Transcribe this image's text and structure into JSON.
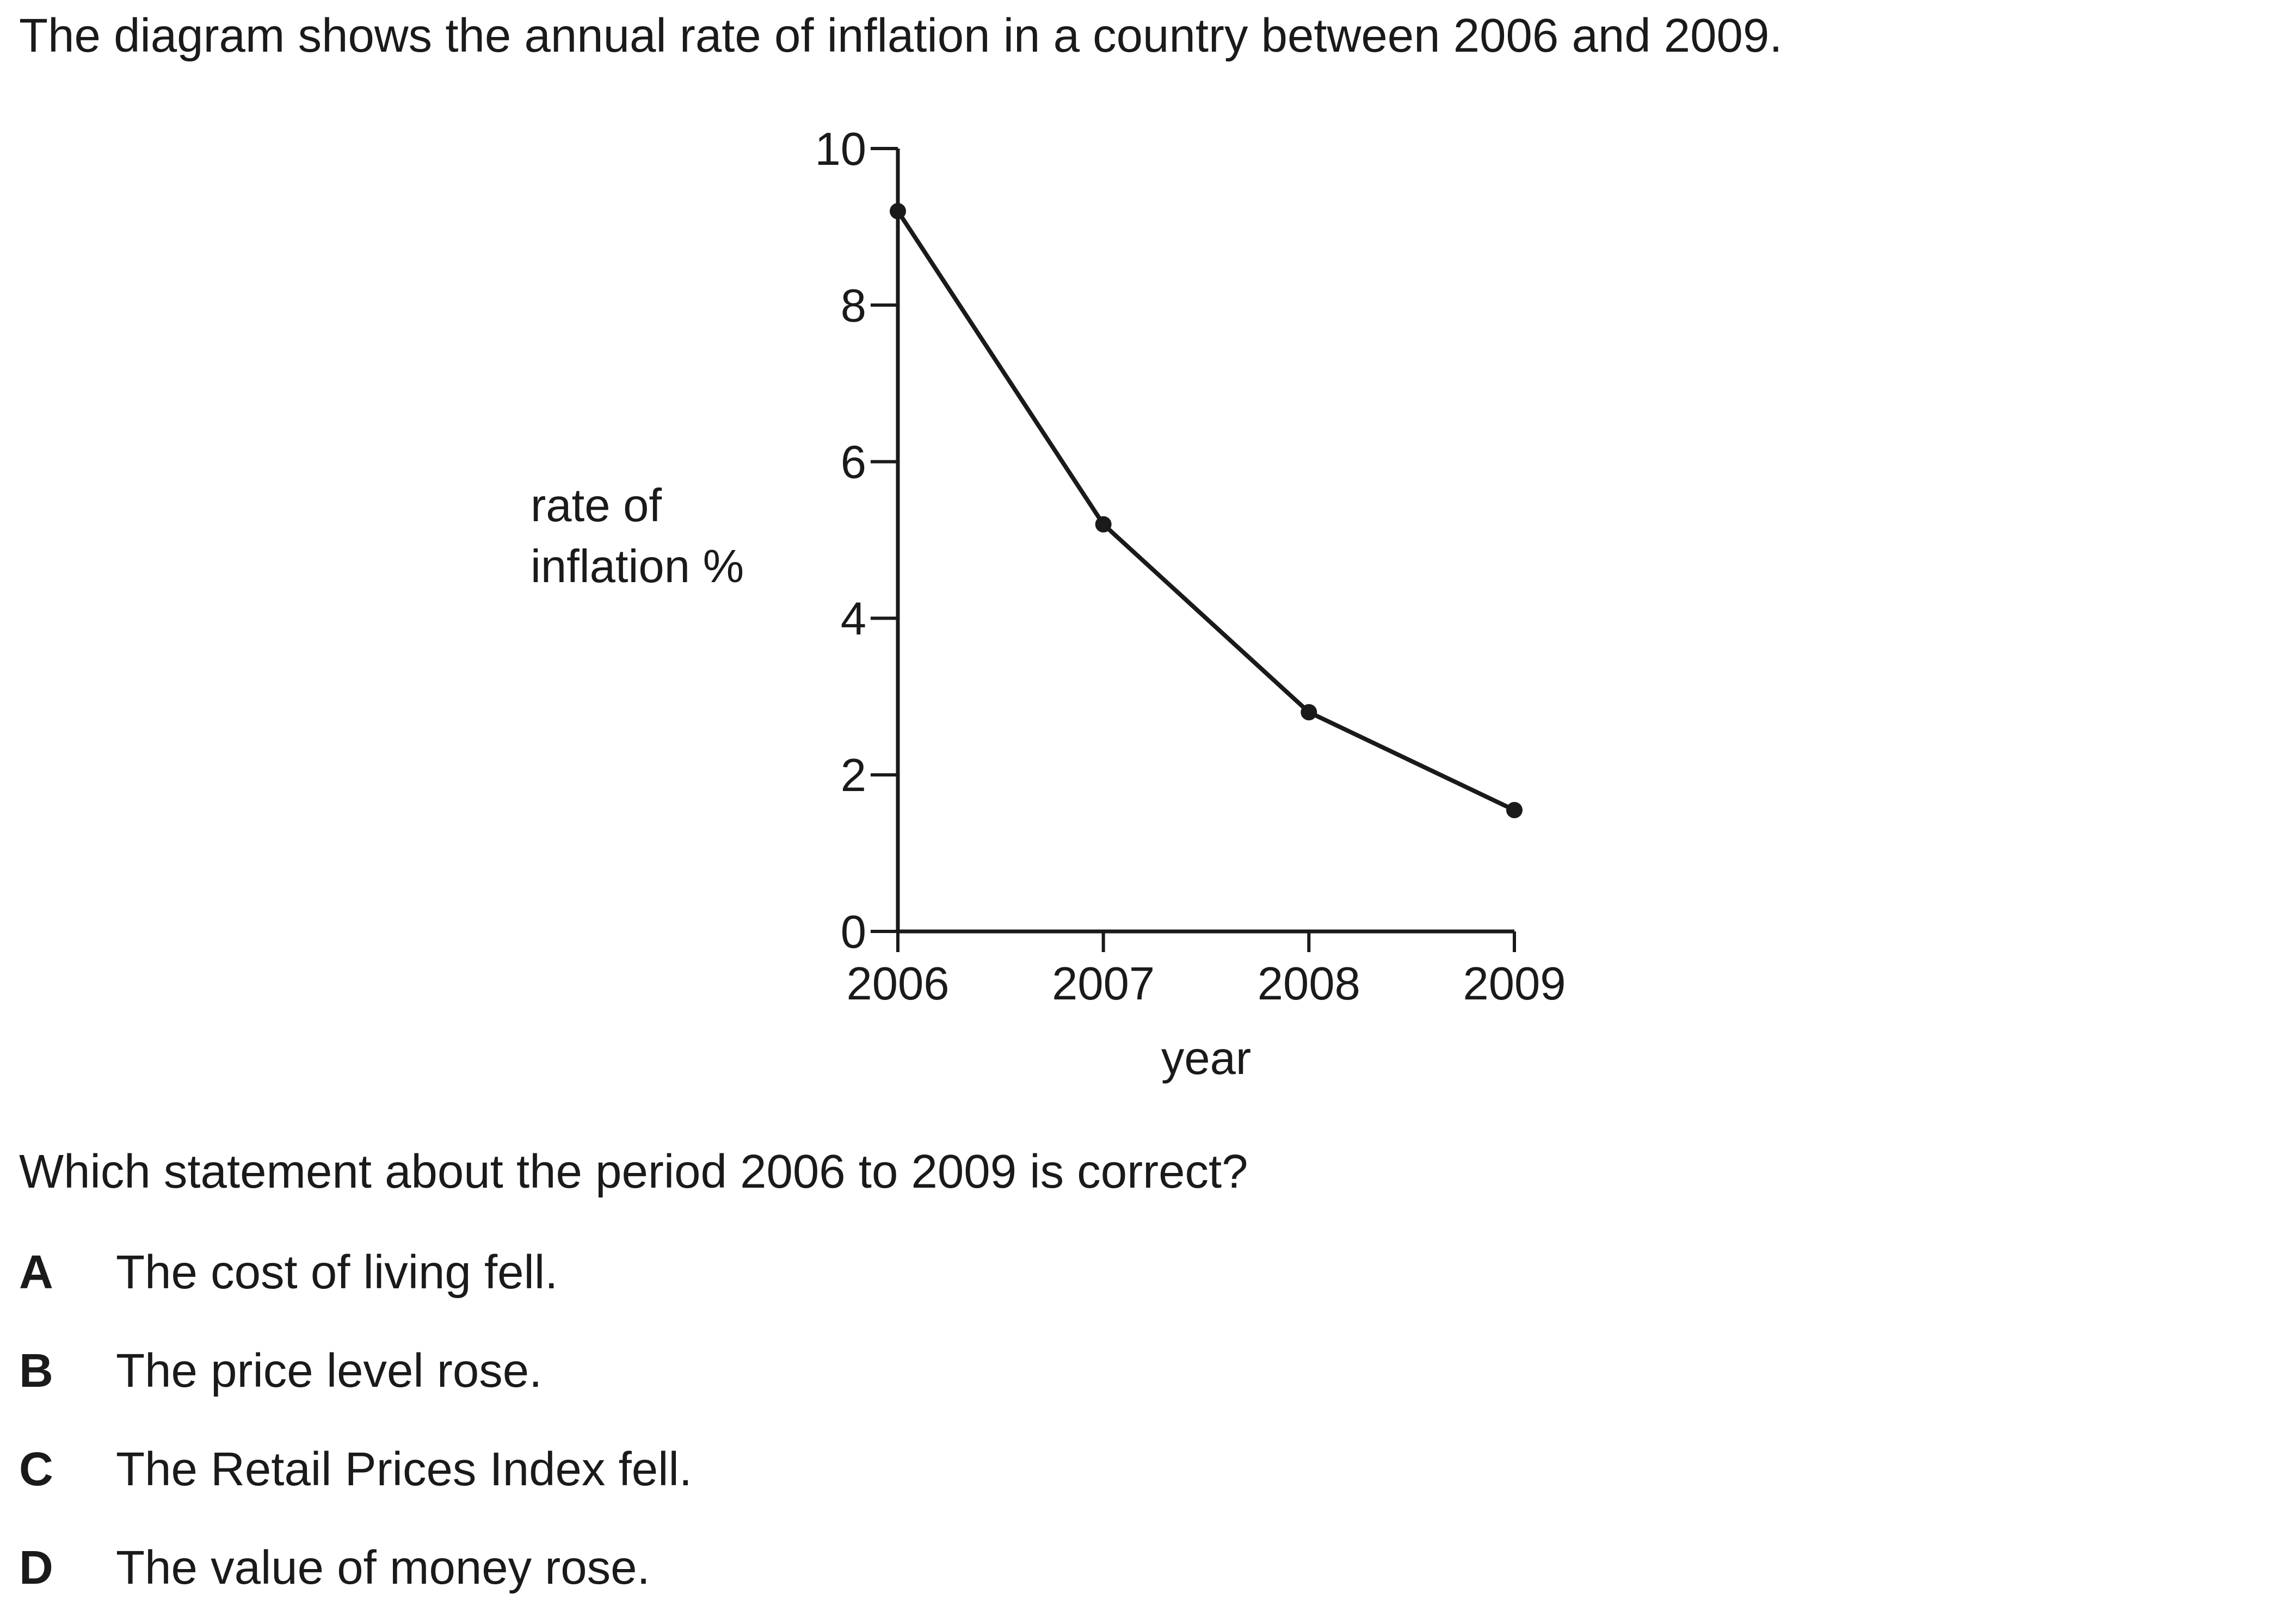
{
  "intro": "The diagram shows the annual rate of inflation in a country between 2006 and 2009.",
  "chart_data": {
    "type": "line",
    "x": [
      2006,
      2007,
      2008,
      2009
    ],
    "series": [
      {
        "values": [
          9.2,
          5.2,
          2.8,
          1.55
        ]
      }
    ],
    "xlabel": "year",
    "ylabel": [
      "rate of",
      "inflation %"
    ],
    "x_ticks": [
      "2006",
      "2007",
      "2008",
      "2009"
    ],
    "y_ticks": [
      "0",
      "2",
      "4",
      "6",
      "8",
      "10"
    ],
    "ylim": [
      0,
      10
    ],
    "grid": false,
    "markers": true,
    "line_color": "#1a1a1a"
  },
  "question": "Which statement about the period 2006 to 2009 is correct?",
  "options": [
    {
      "letter": "A",
      "text": "The cost of living fell."
    },
    {
      "letter": "B",
      "text": "The price level rose."
    },
    {
      "letter": "C",
      "text": "The Retail Prices Index fell."
    },
    {
      "letter": "D",
      "text": "The value of money rose."
    }
  ]
}
